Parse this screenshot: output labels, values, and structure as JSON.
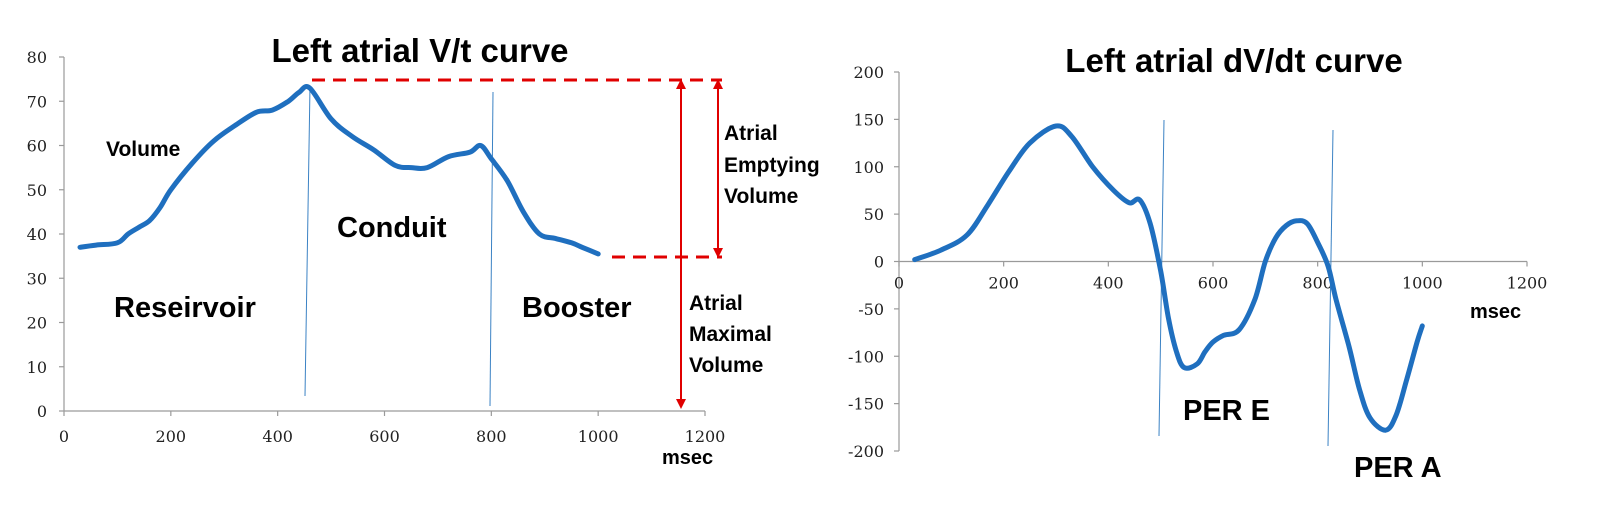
{
  "colors": {
    "curve": "#1f6fbf",
    "marker_line": "#3b82c4",
    "annotation": "#e00000",
    "axis": "#9a9a9a"
  },
  "chart_data": [
    {
      "type": "line",
      "title": "Left atrial V/t curve",
      "xlabel": "msec",
      "ylabel": "",
      "xlim": [
        0,
        1200
      ],
      "ylim": [
        0,
        80
      ],
      "xticks": [
        0,
        200,
        400,
        600,
        800,
        1000,
        1200
      ],
      "yticks": [
        0,
        10,
        20,
        30,
        40,
        50,
        60,
        70,
        80
      ],
      "grid": false,
      "series": [
        {
          "name": "Volume",
          "x": [
            30,
            60,
            100,
            120,
            140,
            160,
            180,
            200,
            240,
            280,
            320,
            360,
            390,
            420,
            440,
            460,
            500,
            540,
            580,
            620,
            650,
            680,
            720,
            760,
            780,
            800,
            830,
            860,
            890,
            920,
            950,
            970,
            1000
          ],
          "y": [
            37,
            37.5,
            38,
            40,
            41.5,
            43,
            46,
            50,
            56,
            61,
            64.5,
            67.5,
            68,
            70,
            72,
            73,
            66,
            62,
            59,
            55.5,
            55,
            55,
            57.5,
            58.5,
            60,
            57,
            52,
            45,
            40,
            39,
            38,
            37,
            35.5
          ]
        }
      ],
      "vertical_lines_x": [
        455,
        800
      ],
      "phase_labels": [
        "Reseirvoir",
        "Conduit",
        "Booster"
      ],
      "annotations": [
        "Atrial Emptying Volume",
        "Atrial Maximal Volume"
      ]
    },
    {
      "type": "line",
      "title": "Left atrial dV/dt curve",
      "xlabel": "msec",
      "ylabel": "",
      "xlim": [
        0,
        1200
      ],
      "ylim": [
        -200,
        200
      ],
      "xticks": [
        0,
        200,
        400,
        600,
        800,
        1000,
        1200
      ],
      "yticks": [
        -200,
        -150,
        -100,
        -50,
        0,
        50,
        100,
        150,
        200
      ],
      "grid": false,
      "series": [
        {
          "name": "",
          "x": [
            30,
            80,
            130,
            170,
            210,
            250,
            300,
            330,
            370,
            410,
            440,
            460,
            480,
            500,
            515,
            530,
            545,
            570,
            585,
            600,
            620,
            650,
            680,
            700,
            720,
            740,
            760,
            780,
            800,
            820,
            835,
            860,
            880,
            900,
            930,
            950,
            970,
            990,
            1000
          ],
          "y": [
            2,
            12,
            28,
            60,
            95,
            125,
            143,
            132,
            100,
            75,
            62,
            65,
            40,
            -10,
            -60,
            -95,
            -112,
            -108,
            -95,
            -85,
            -78,
            -72,
            -40,
            0,
            25,
            38,
            43,
            40,
            20,
            -5,
            -40,
            -90,
            -135,
            -165,
            -178,
            -162,
            -125,
            -85,
            -68
          ]
        }
      ],
      "vertical_lines_x": [
        500,
        830
      ],
      "phase_labels": [
        "PER E",
        "PER A"
      ]
    }
  ],
  "labels": {
    "chart1": {
      "title": "Left atrial V/t curve",
      "volume": "Volume",
      "conduit": "Conduit",
      "reservoir": "Reseirvoir",
      "booster": "Booster",
      "xunit": "msec",
      "emptying_1": "Atrial",
      "emptying_2": "Emptying",
      "emptying_3": "Volume",
      "maximal_1": "Atrial",
      "maximal_2": "Maximal",
      "maximal_3": "Volume"
    },
    "chart2": {
      "title": "Left atrial dV/dt curve",
      "per_e": "PER E",
      "per_a": "PER A",
      "xunit": "msec"
    }
  }
}
